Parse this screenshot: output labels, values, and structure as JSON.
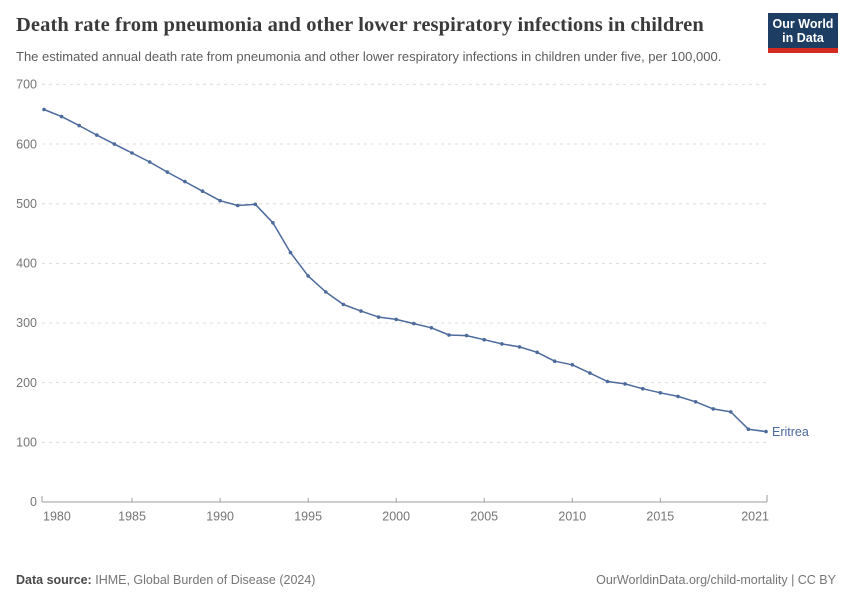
{
  "header": {
    "title": "Death rate from pneumonia and other lower respiratory infections in children",
    "subtitle": "The estimated annual death rate from pneumonia and other lower respiratory infections in children under five, per 100,000.",
    "logo": {
      "line1": "Our World",
      "line2": "in Data"
    }
  },
  "chart_data": {
    "type": "line",
    "title": "Death rate from pneumonia and other lower respiratory infections in children",
    "entity_label": "Eritrea",
    "x": [
      1980,
      1981,
      1982,
      1983,
      1984,
      1985,
      1986,
      1987,
      1988,
      1989,
      1990,
      1991,
      1992,
      1993,
      1994,
      1995,
      1996,
      1997,
      1998,
      1999,
      2000,
      2001,
      2002,
      2003,
      2004,
      2005,
      2006,
      2007,
      2008,
      2009,
      2010,
      2011,
      2012,
      2013,
      2014,
      2015,
      2016,
      2017,
      2018,
      2019,
      2020,
      2021
    ],
    "series": [
      {
        "name": "Eritrea",
        "color": "#4c6a9c",
        "values": [
          658,
          646,
          631,
          615,
          600,
          585,
          570,
          553,
          537,
          521,
          505,
          497,
          499,
          468,
          418,
          379,
          352,
          331,
          320,
          310,
          306,
          299,
          292,
          280,
          279,
          272,
          265,
          260,
          251,
          236,
          230,
          216,
          202,
          198,
          190,
          183,
          177,
          168,
          156,
          151,
          122,
          118
        ]
      }
    ],
    "xticks": [
      1980,
      1985,
      1990,
      1995,
      2000,
      2005,
      2010,
      2015,
      2021
    ],
    "yticks": [
      0,
      100,
      200,
      300,
      400,
      500,
      600,
      700
    ],
    "xlim": [
      1980,
      2021
    ],
    "ylim": [
      0,
      700
    ],
    "grid": "horizontal-dashed",
    "legend_position": "end-of-line"
  },
  "footer": {
    "source_label": "Data source:",
    "source_value": "IHME, Global Burden of Disease (2024)",
    "credit": "OurWorldinData.org/child-mortality | CC BY"
  },
  "colors": {
    "line": "#4c6a9c",
    "logo_bg": "#1d3d63",
    "logo_accent": "#d42b21",
    "grid": "#dcdcdc",
    "axis": "#9e9e9e",
    "tick_label": "#757575",
    "title": "#3a3a3a",
    "subtitle": "#5c5c5c"
  }
}
